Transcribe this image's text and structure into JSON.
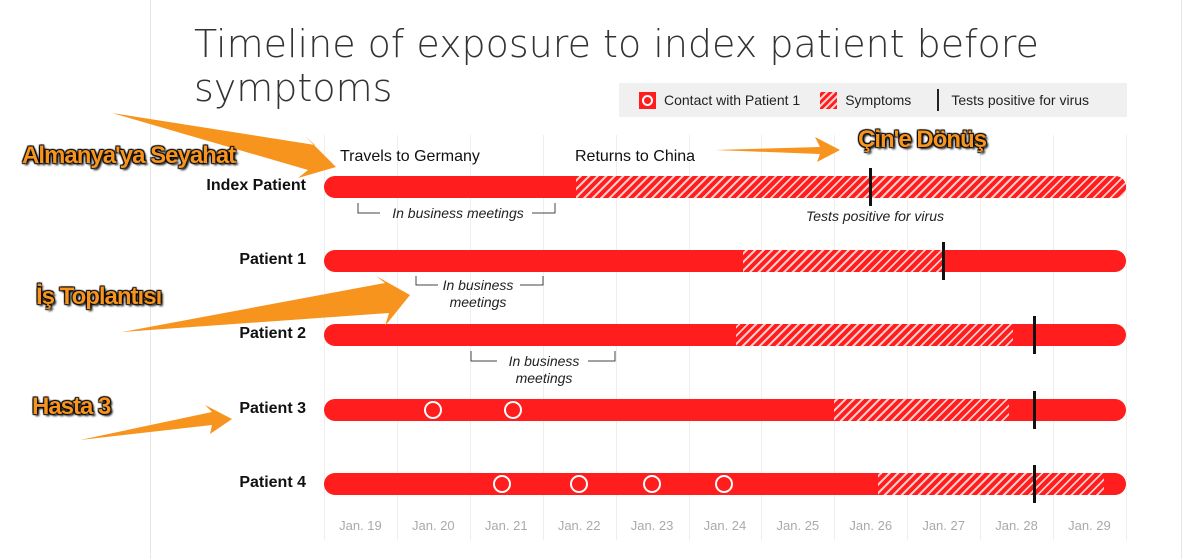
{
  "chart_data": {
    "type": "timeline",
    "title": "Timeline of exposure to index patient before symptoms",
    "legend": {
      "contact": "Contact with Patient 1",
      "symptoms": "Symptoms",
      "test": "Tests positive for virus"
    },
    "x_ticks": [
      "Jan. 19",
      "Jan. 20",
      "Jan. 21",
      "Jan. 22",
      "Jan. 23",
      "Jan. 24",
      "Jan. 25",
      "Jan. 26",
      "Jan. 27",
      "Jan. 28",
      "Jan. 29"
    ],
    "x_range_days": [
      0,
      11
    ],
    "rows": [
      {
        "name": "Index Patient",
        "symptoms": [
          3.45,
          11
        ],
        "test": 7.5,
        "contacts": []
      },
      {
        "name": "Patient 1",
        "symptoms": [
          5.75,
          8.5
        ],
        "test": 8.5,
        "contacts": []
      },
      {
        "name": "Patient 2",
        "symptoms": [
          5.65,
          9.45
        ],
        "test": 9.75,
        "contacts": []
      },
      {
        "name": "Patient 3",
        "symptoms": [
          7.0,
          9.4
        ],
        "test": 9.75,
        "contacts": [
          1.5,
          2.6
        ]
      },
      {
        "name": "Patient 4",
        "symptoms": [
          7.6,
          10.7
        ],
        "test": 9.75,
        "contacts": [
          2.45,
          3.5,
          4.5,
          5.5
        ]
      }
    ],
    "annotations": {
      "travels": "Travels to Germany",
      "returns": "Returns to China",
      "tests_positive": "Tests positive for virus",
      "meetings_index": "In business meetings",
      "meetings_p1": "In business meetings",
      "meetings_p2": "In business meetings"
    }
  },
  "overlays": {
    "germany": "Almanya'ya Seyahat",
    "meeting": "İş Toplantısı",
    "patient3": "Hasta 3",
    "china": "Çin'e Dönüş"
  },
  "colors": {
    "red": "#ff1d1d",
    "arrow": "#f7941d"
  }
}
